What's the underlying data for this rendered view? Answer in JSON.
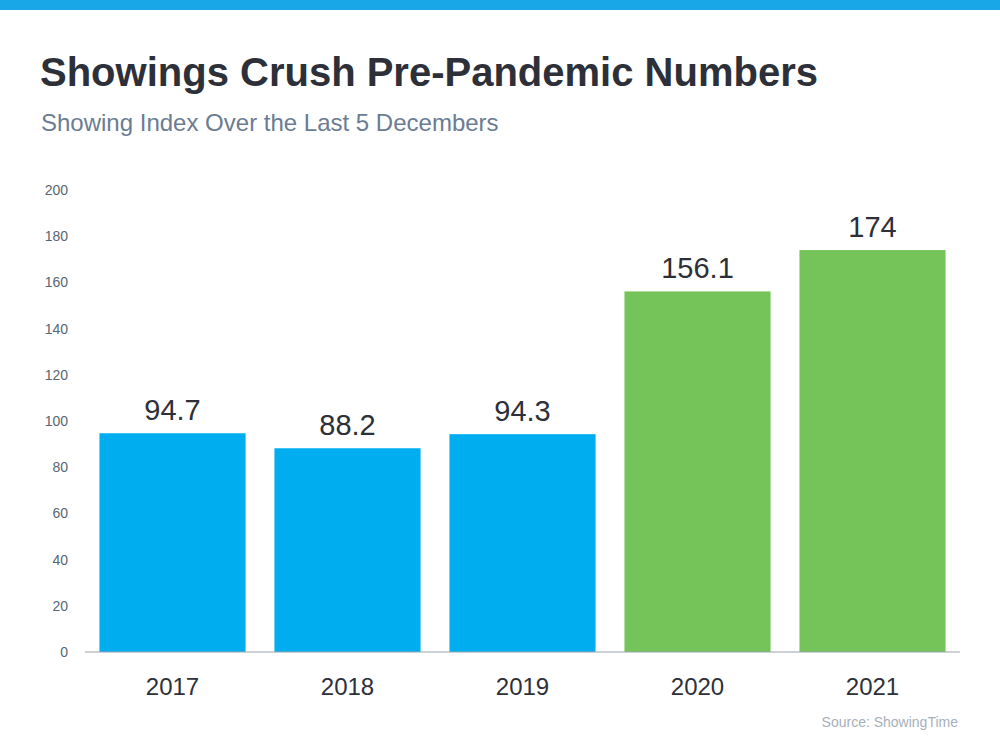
{
  "chart_data": {
    "type": "bar",
    "title": "Showings Crush Pre-Pandemic Numbers",
    "subtitle": "Showing Index Over the Last 5 Decembers",
    "categories": [
      "2017",
      "2018",
      "2019",
      "2020",
      "2021"
    ],
    "values": [
      94.7,
      88.2,
      94.3,
      156.1,
      174
    ],
    "colors": [
      "#00adef",
      "#00adef",
      "#00adef",
      "#75c45a",
      "#75c45a"
    ],
    "ylim": [
      0,
      200
    ],
    "yticks": [
      0,
      20,
      40,
      60,
      80,
      100,
      120,
      140,
      160,
      180,
      200
    ],
    "grid": false,
    "data_labels": true,
    "source": "Source: ShowingTime"
  }
}
